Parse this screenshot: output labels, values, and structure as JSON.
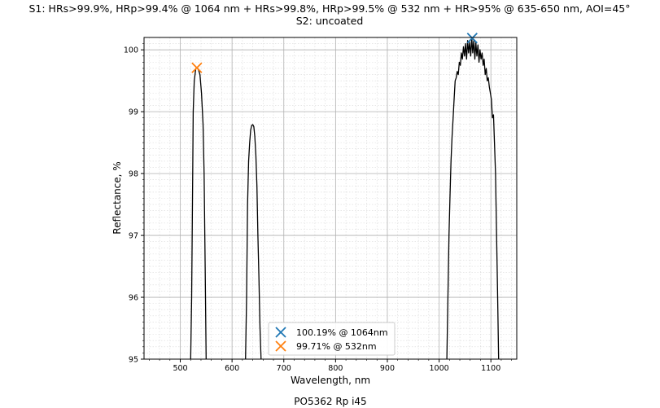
{
  "chart_data": {
    "type": "line",
    "title_lines": [
      "S1: HRs>99.9%, HRp>99.4% @ 1064 nm + HRs>99.8%, HRp>99.5% @ 532 nm + HR>95% @ 635-650 nm, AOI=45°",
      "S2: uncoated"
    ],
    "xlabel": "Wavelength, nm",
    "ylabel": "Reflectance, %",
    "footer": "PO5362 Rp i45",
    "xlim": [
      430,
      1150
    ],
    "ylim": [
      95,
      100.2
    ],
    "xticks": [
      500,
      600,
      700,
      800,
      900,
      1000,
      1100
    ],
    "yticks": [
      95,
      96,
      97,
      98,
      99,
      100
    ],
    "grid": true,
    "minor_grid": true,
    "legend_position": "lower-center",
    "line_color": "#000000",
    "series": [
      {
        "values": [
          [
            520,
            95.0
          ],
          [
            522,
            96.0
          ],
          [
            524,
            98.0
          ],
          [
            525,
            99.0
          ],
          [
            527,
            99.5
          ],
          [
            530,
            99.7
          ],
          [
            532,
            99.71
          ],
          [
            535,
            99.68
          ],
          [
            538,
            99.6
          ],
          [
            541,
            99.3
          ],
          [
            544,
            98.8
          ],
          [
            546,
            98.0
          ],
          [
            548,
            96.5
          ],
          [
            550,
            95.0
          ]
        ]
      },
      {
        "values": [
          [
            626,
            95.0
          ],
          [
            628,
            96.0
          ],
          [
            630,
            97.5
          ],
          [
            632,
            98.2
          ],
          [
            634,
            98.5
          ],
          [
            636,
            98.7
          ],
          [
            638,
            98.78
          ],
          [
            640,
            98.79
          ],
          [
            642,
            98.76
          ],
          [
            644,
            98.6
          ],
          [
            646,
            98.3
          ],
          [
            648,
            97.8
          ],
          [
            650,
            97.0
          ],
          [
            652,
            96.3
          ],
          [
            654,
            95.5
          ],
          [
            656,
            95.0
          ]
        ]
      },
      {
        "values": [
          [
            1015,
            95.0
          ],
          [
            1017,
            96.0
          ],
          [
            1019,
            97.0
          ],
          [
            1021,
            97.6
          ],
          [
            1023,
            98.2
          ],
          [
            1025,
            98.6
          ],
          [
            1027,
            98.9
          ],
          [
            1029,
            99.2
          ],
          [
            1031,
            99.5
          ],
          [
            1033,
            99.55
          ],
          [
            1035,
            99.65
          ],
          [
            1037,
            99.6
          ],
          [
            1039,
            99.8
          ],
          [
            1041,
            99.75
          ],
          [
            1043,
            99.95
          ],
          [
            1045,
            99.85
          ],
          [
            1047,
            100.05
          ],
          [
            1049,
            99.9
          ],
          [
            1051,
            100.1
          ],
          [
            1053,
            99.85
          ],
          [
            1055,
            100.15
          ],
          [
            1057,
            99.95
          ],
          [
            1059,
            100.12
          ],
          [
            1061,
            99.9
          ],
          [
            1063,
            100.19
          ],
          [
            1065,
            99.95
          ],
          [
            1067,
            100.15
          ],
          [
            1069,
            99.85
          ],
          [
            1071,
            100.12
          ],
          [
            1073,
            99.9
          ],
          [
            1075,
            100.08
          ],
          [
            1077,
            99.8
          ],
          [
            1079,
            100.0
          ],
          [
            1081,
            99.85
          ],
          [
            1083,
            99.95
          ],
          [
            1085,
            99.75
          ],
          [
            1087,
            99.85
          ],
          [
            1089,
            99.6
          ],
          [
            1091,
            99.7
          ],
          [
            1093,
            99.5
          ],
          [
            1095,
            99.55
          ],
          [
            1097,
            99.4
          ],
          [
            1099,
            99.3
          ],
          [
            1101,
            99.2
          ],
          [
            1103,
            98.9
          ],
          [
            1105,
            98.95
          ],
          [
            1107,
            98.5
          ],
          [
            1109,
            98.0
          ],
          [
            1111,
            97.0
          ],
          [
            1113,
            96.0
          ],
          [
            1115,
            95.0
          ]
        ]
      }
    ],
    "markers": [
      {
        "label": "100.19% @ 1064nm",
        "x": 1064,
        "y": 100.19,
        "color": "#1f77b4",
        "symbol": "x"
      },
      {
        "label": "99.71% @ 532nm",
        "x": 532,
        "y": 99.71,
        "color": "#ff7f0e",
        "symbol": "x"
      }
    ]
  }
}
